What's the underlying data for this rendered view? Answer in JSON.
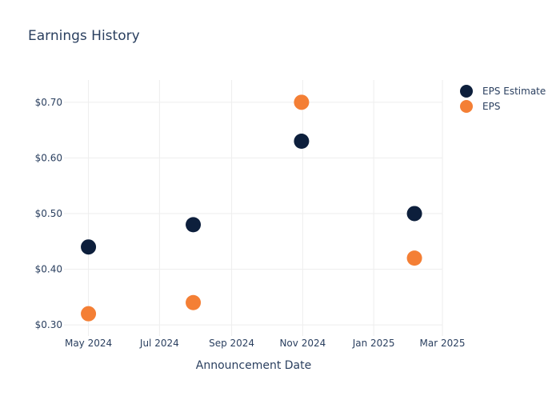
{
  "chart_data": {
    "type": "scatter",
    "title": "Earnings History",
    "xlabel": "Announcement Date",
    "ylabel": "",
    "x_axis_type": "date",
    "xlim": [
      "2024-04-10",
      "2025-03-01"
    ],
    "ylim": [
      0.28,
      0.74
    ],
    "x_ticks": [
      {
        "date": "2024-05-01",
        "label": "May 2024"
      },
      {
        "date": "2024-07-01",
        "label": "Jul 2024"
      },
      {
        "date": "2024-09-01",
        "label": "Sep 2024"
      },
      {
        "date": "2024-11-01",
        "label": "Nov 2024"
      },
      {
        "date": "2025-01-01",
        "label": "Jan 2025"
      },
      {
        "date": "2025-03-01",
        "label": "Mar 2025"
      }
    ],
    "y_ticks": [
      {
        "value": 0.3,
        "label": "$0.30"
      },
      {
        "value": 0.4,
        "label": "$0.40"
      },
      {
        "value": 0.5,
        "label": "$0.50"
      },
      {
        "value": 0.6,
        "label": "$0.60"
      },
      {
        "value": 0.7,
        "label": "$0.70"
      }
    ],
    "grid": true,
    "legend_position": "top-right",
    "series": [
      {
        "name": "EPS Estimate",
        "color": "#0d1f3c",
        "points": [
          {
            "x": "2024-05-01",
            "y": 0.44
          },
          {
            "x": "2024-07-30",
            "y": 0.48
          },
          {
            "x": "2024-10-31",
            "y": 0.63
          },
          {
            "x": "2025-02-05",
            "y": 0.5
          }
        ]
      },
      {
        "name": "EPS",
        "color": "#f47f35",
        "points": [
          {
            "x": "2024-05-01",
            "y": 0.32
          },
          {
            "x": "2024-07-30",
            "y": 0.34
          },
          {
            "x": "2024-10-31",
            "y": 0.7
          },
          {
            "x": "2025-02-05",
            "y": 0.42
          }
        ]
      }
    ]
  }
}
